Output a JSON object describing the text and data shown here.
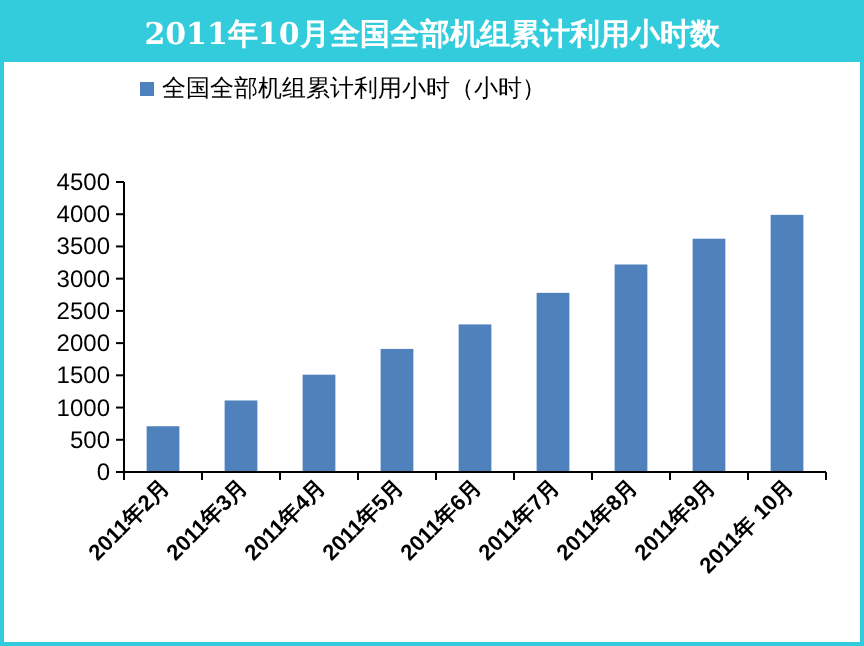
{
  "chart_data": {
    "type": "bar",
    "title": "2011年10月全国全部机组累计利用小时数",
    "categories": [
      "2011年2月",
      "2011年3月",
      "2011年4月",
      "2011年5月",
      "2011年6月",
      "2011年7月",
      "2011年8月",
      "2011年9月",
      "2011年 10月"
    ],
    "series": [
      {
        "name": "全国全部机组累计利用小时（小时）",
        "color": "#4f81bd",
        "values": [
          710,
          1110,
          1510,
          1910,
          2290,
          2780,
          3220,
          3620,
          3990
        ]
      }
    ],
    "ylim": [
      0,
      4500
    ],
    "yticks": [
      0,
      500,
      1000,
      1500,
      2000,
      2500,
      3000,
      3500,
      4000,
      4500
    ],
    "grid": false,
    "legend": "top"
  }
}
